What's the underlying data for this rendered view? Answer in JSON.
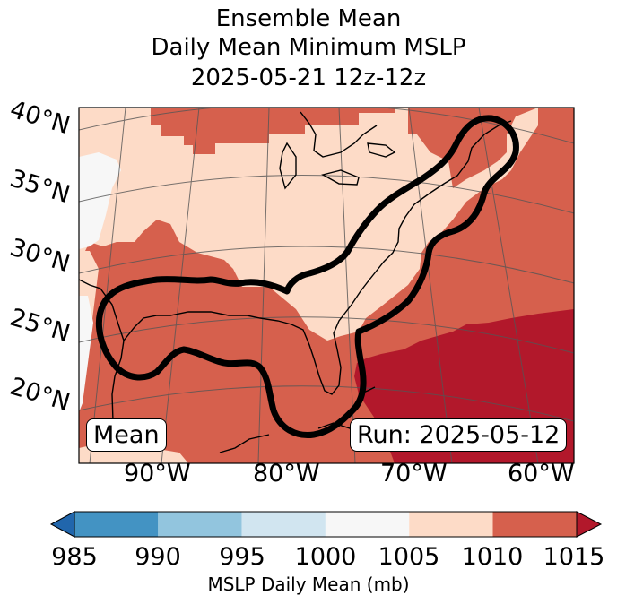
{
  "title": {
    "line1": "Ensemble Mean",
    "line2": "Daily Mean Minimum MSLP",
    "line3": "2025-05-21 12z-12z"
  },
  "lat_labels": [
    "40°N",
    "35°N",
    "30°N",
    "25°N",
    "20°N"
  ],
  "lon_labels": [
    "90°W",
    "80°W",
    "70°W",
    "60°W"
  ],
  "mean_label": "Mean",
  "run_label": "Run: 2025-05-12",
  "colorbar": {
    "ticks": [
      "985",
      "990",
      "995",
      "1000",
      "1005",
      "1010",
      "1015"
    ],
    "label": "MSLP Daily Mean (mb)",
    "colors": [
      "#2166ac",
      "#4393c3",
      "#92c5de",
      "#d1e5f0",
      "#f7f7f7",
      "#fddbc7",
      "#d6604d",
      "#b2182b"
    ]
  },
  "field_colors": {
    "c1000": "#f7f7f7",
    "c1005": "#fddbc7",
    "c1010": "#d6604d",
    "c1015": "#b2182b"
  }
}
